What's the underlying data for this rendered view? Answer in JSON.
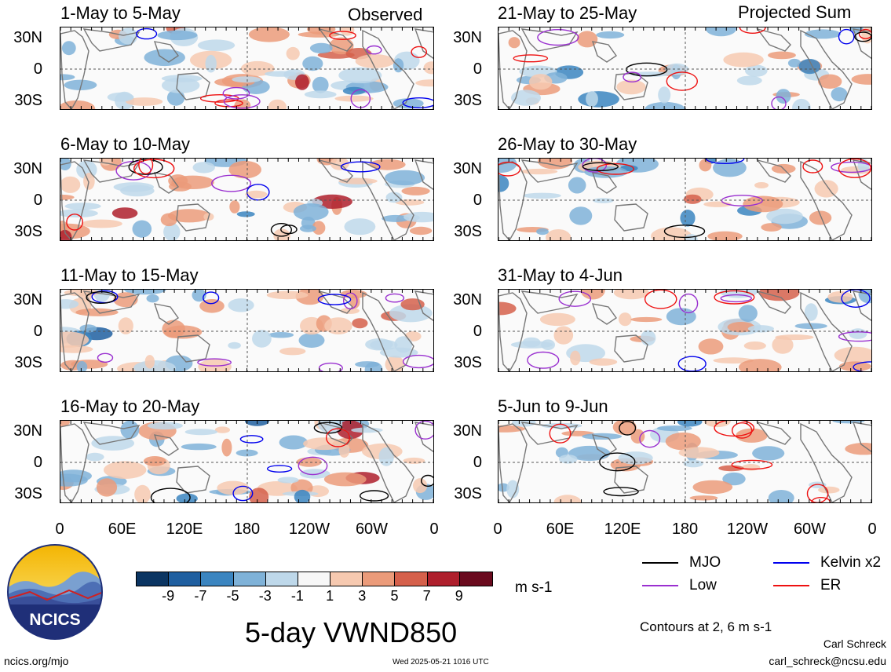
{
  "headers": {
    "left": "Observed",
    "right": "Projected Sum"
  },
  "lat_labels": [
    "30N",
    "0",
    "30S"
  ],
  "lon_labels": [
    "0",
    "60E",
    "120E",
    "180",
    "120W",
    "60W",
    "0"
  ],
  "panels": {
    "left": [
      {
        "title": "1-May to 5-May"
      },
      {
        "title": "6-May to 10-May"
      },
      {
        "title": "11-May to 15-May"
      },
      {
        "title": "16-May to 20-May"
      }
    ],
    "right": [
      {
        "title": "21-May to 25-May"
      },
      {
        "title": "26-May to 30-May"
      },
      {
        "title": "31-May to 4-Jun"
      },
      {
        "title": "5-Jun to 9-Jun"
      }
    ]
  },
  "colorbar": {
    "labels": [
      "-9",
      "-7",
      "-5",
      "-3",
      "-1",
      "1",
      "3",
      "5",
      "7",
      "9"
    ],
    "colors": [
      "#0b3562",
      "#1f5fa0",
      "#3b85c0",
      "#7fb2d8",
      "#bed8ea",
      "#f7f7f7",
      "#f6c9b0",
      "#eb9b7a",
      "#d5604b",
      "#ae1f2c",
      "#6a0a1e"
    ],
    "units": "m s-1"
  },
  "legend": {
    "items": [
      {
        "label": "MJO",
        "color": "#000000"
      },
      {
        "label": "Kelvin x2",
        "color": "#0000ee"
      },
      {
        "label": "Low",
        "color": "#9a30d0"
      },
      {
        "label": "ER",
        "color": "#ee1111"
      }
    ],
    "contours_note": "Contours at 2, 6 m s-1"
  },
  "main_title": "5-day VWND850",
  "logo": {
    "text": "NCICS"
  },
  "footer": {
    "left": "ncics.org/mjo",
    "center": "Wed 2025-05-21 1016 UTC",
    "author": "Carl Schreck",
    "email": "carl_schreck@ncsu.edu"
  }
}
